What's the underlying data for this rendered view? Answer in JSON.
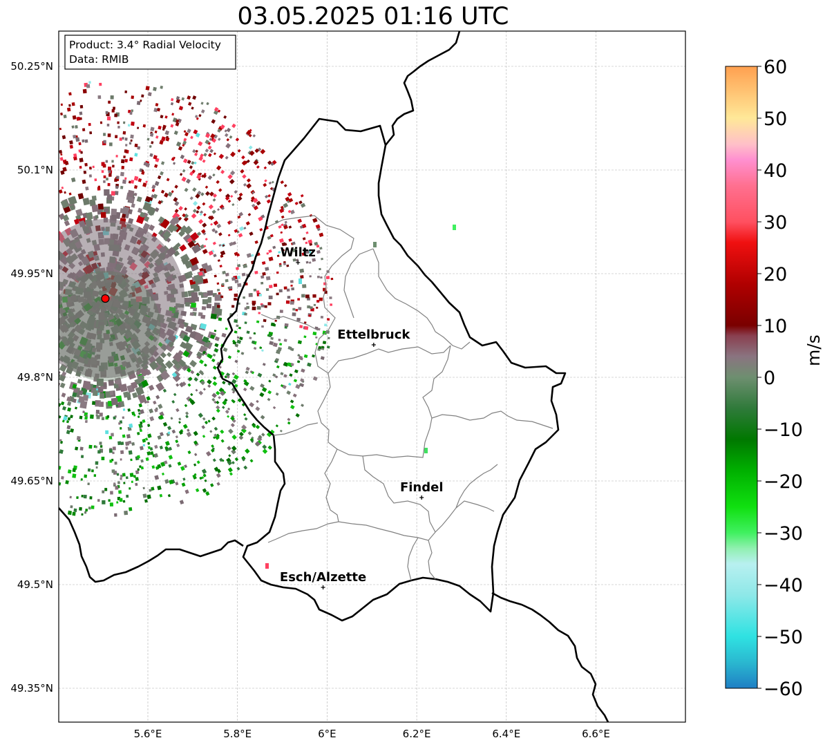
{
  "title": "03.05.2025 01:16 UTC",
  "info_box": {
    "line1": "Product: 3.4° Radial Velocity",
    "line2": "Data: RMIB"
  },
  "axes": {
    "lat_ticks": [
      "50.25°N",
      "50.1°N",
      "49.95°N",
      "49.8°N",
      "49.65°N",
      "49.5°N",
      "49.35°N"
    ],
    "lon_ticks": [
      "5.6°E",
      "5.8°E",
      "6°E",
      "6.2°E",
      "6.4°E",
      "6.6°E"
    ]
  },
  "cities": [
    {
      "name": "Wiltz",
      "lon": 5.935,
      "lat": 49.966
    },
    {
      "name": "Ettelbruck",
      "lon": 6.104,
      "lat": 49.847
    },
    {
      "name": "Findel",
      "lon": 6.211,
      "lat": 49.626
    },
    {
      "name": "Esch/Alzette",
      "lon": 5.991,
      "lat": 49.496
    }
  ],
  "radar_site": {
    "lon": 5.505,
    "lat": 49.914,
    "color": "#ff0000"
  },
  "colorbar": {
    "label": "m/s",
    "ticks": [
      "60",
      "50",
      "40",
      "30",
      "20",
      "10",
      "0",
      "−10",
      "−20",
      "−30",
      "−40",
      "−50",
      "−60"
    ],
    "vmin": -60,
    "vmax": 60,
    "stops": [
      {
        "v": -60,
        "c": "#1f7fc4"
      },
      {
        "v": -55,
        "c": "#2ab8d0"
      },
      {
        "v": -50,
        "c": "#2fe2e2"
      },
      {
        "v": -42,
        "c": "#8ee8e8"
      },
      {
        "v": -36,
        "c": "#b8f0f0"
      },
      {
        "v": -33,
        "c": "#90f0b0"
      },
      {
        "v": -30,
        "c": "#40f060"
      },
      {
        "v": -25,
        "c": "#10e010"
      },
      {
        "v": -18,
        "c": "#00b000"
      },
      {
        "v": -12,
        "c": "#007800"
      },
      {
        "v": -6,
        "c": "#2f7a3a"
      },
      {
        "v": 0,
        "c": "#6e8f70"
      },
      {
        "v": 4,
        "c": "#8a7480"
      },
      {
        "v": 8,
        "c": "#8a4050"
      },
      {
        "v": 10,
        "c": "#7a0000"
      },
      {
        "v": 18,
        "c": "#b00000"
      },
      {
        "v": 26,
        "c": "#f01010"
      },
      {
        "v": 30,
        "c": "#ff5060"
      },
      {
        "v": 37,
        "c": "#ff7090"
      },
      {
        "v": 42,
        "c": "#ff90d0"
      },
      {
        "v": 45,
        "c": "#ffc0c8"
      },
      {
        "v": 50,
        "c": "#ffe898"
      },
      {
        "v": 60,
        "c": "#ffa050"
      }
    ]
  }
}
